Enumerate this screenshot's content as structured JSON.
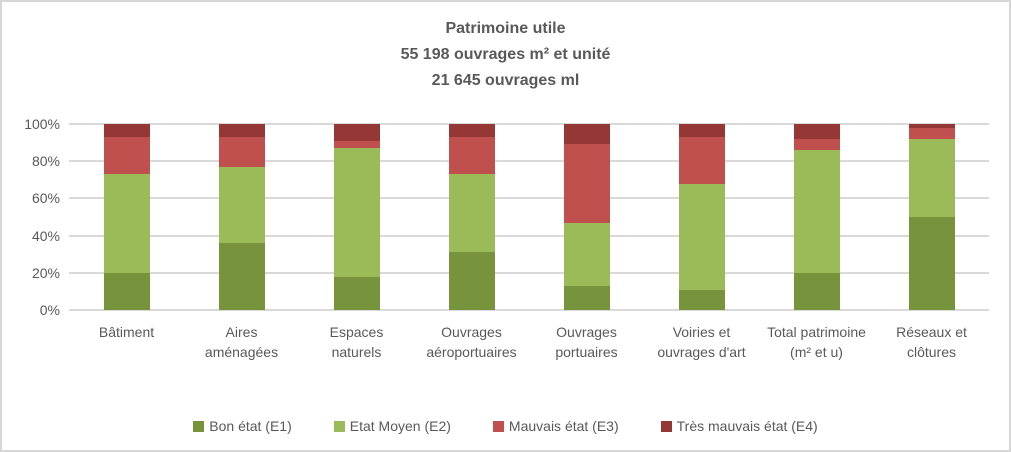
{
  "chart": {
    "title_lines": [
      "Patrimoine utile",
      "55 198 ouvrages m² et unité",
      "21 645 ouvrages ml"
    ]
  },
  "chart_data": {
    "type": "bar",
    "subtype": "stacked-100-percent",
    "title": "Patrimoine utile\n55 198 ouvrages m² et unité\n21 645 ouvrages ml",
    "xlabel": "",
    "ylabel": "",
    "ylim": [
      0,
      100
    ],
    "y_ticks": [
      "0%",
      "20%",
      "40%",
      "60%",
      "80%",
      "100%"
    ],
    "grid": true,
    "legend_position": "bottom",
    "categories": [
      "Bâtiment",
      "Aires aménagées",
      "Espaces naturels",
      "Ouvrages aéroportuaires",
      "Ouvrages portuaires",
      "Voiries et ouvrages d'art",
      "Total patrimoine (m² et u)",
      "Réseaux et clôtures"
    ],
    "series": [
      {
        "name": "Bon état (E1)",
        "color": "#77933C",
        "values": [
          20,
          36,
          18,
          31,
          13,
          11,
          20,
          50
        ]
      },
      {
        "name": "Etat Moyen (E2)",
        "color": "#9BBB59",
        "values": [
          53,
          41,
          69,
          42,
          34,
          57,
          66,
          42
        ]
      },
      {
        "name": "Mauvais état (E3)",
        "color": "#C0504D",
        "values": [
          20,
          16,
          4,
          20,
          42,
          25,
          6,
          6
        ]
      },
      {
        "name": "Très mauvais état (E4)",
        "color": "#953735",
        "values": [
          7,
          7,
          9,
          7,
          11,
          7,
          8,
          2
        ]
      }
    ],
    "colors": {
      "gridline": "#D9D9D9",
      "text": "#595959",
      "background": "#FFFFFF",
      "frame_border": "#D7D7D7"
    }
  }
}
